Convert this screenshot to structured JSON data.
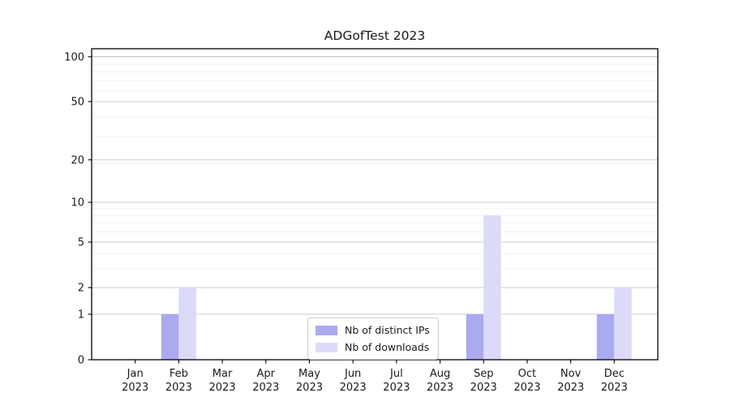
{
  "chart_data": {
    "type": "bar",
    "title": "ADGofTest 2023",
    "categories": [
      "Jan",
      "Feb",
      "Mar",
      "Apr",
      "May",
      "Jun",
      "Jul",
      "Aug",
      "Sep",
      "Oct",
      "Nov",
      "Dec"
    ],
    "category_year": "2023",
    "series": [
      {
        "name": "Nb of distinct IPs",
        "color": "#aaaaf0",
        "values": [
          0,
          1,
          0,
          0,
          0,
          0,
          0,
          0,
          1,
          0,
          0,
          1
        ]
      },
      {
        "name": "Nb of downloads",
        "color": "#dbdbf9",
        "values": [
          0,
          2,
          0,
          0,
          0,
          0,
          0,
          0,
          8,
          0,
          0,
          2
        ]
      }
    ],
    "yscale": "log10(1+x)",
    "yticks": [
      0,
      1,
      2,
      5,
      10,
      20,
      50,
      100
    ],
    "minor_gridlines": [
      3,
      4,
      6,
      7,
      8,
      9,
      19,
      29,
      39,
      59,
      69,
      79,
      89
    ],
    "ylim": [
      0,
      113
    ],
    "xlabel": "",
    "ylabel": "",
    "grid": "horizontal",
    "legend_position": "lower center",
    "colors": {
      "axis": "#000000",
      "tick_label": "#1a1a1a",
      "grid_major": "#c6c6c6",
      "grid_major_top": "#aaaaaa",
      "grid_minor": "#ececec",
      "legend_border": "#cccccc",
      "background": "#ffffff"
    }
  }
}
